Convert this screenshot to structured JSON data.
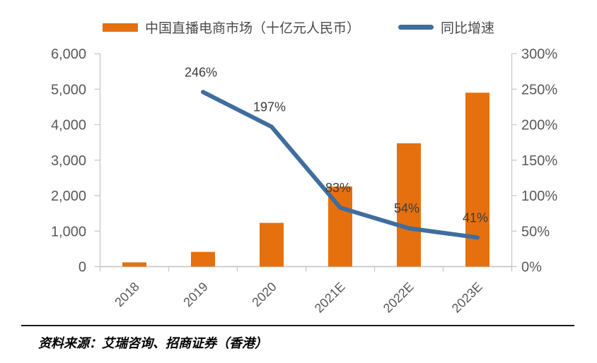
{
  "legend": {
    "bar_label": "中国直播电商市场（十亿元人民币）",
    "line_label": "同比增速"
  },
  "source": {
    "text": "资料来源：艾瑞咨询、招商证券（香港）"
  },
  "chart_data": {
    "type": "combo",
    "categories": [
      "2018",
      "2019",
      "2020",
      "2021E",
      "2022E",
      "2023E"
    ],
    "series": [
      {
        "name": "中国直播电商市场（十亿元人民币）",
        "type": "bar",
        "axis": "left",
        "values": [
          120,
          415,
          1232,
          2255,
          3475,
          4900
        ],
        "color": "#E6700D"
      },
      {
        "name": "同比增速",
        "type": "line",
        "axis": "right",
        "values": [
          null,
          246,
          197,
          83,
          54,
          41
        ],
        "labels": [
          null,
          "246%",
          "197%",
          "83%",
          "54%",
          "41%"
        ],
        "color": "#3F6D9E"
      }
    ],
    "left_axis": {
      "min": 0,
      "max": 6000,
      "ticks": [
        "0",
        "1,000",
        "2,000",
        "3,000",
        "4,000",
        "5,000",
        "6,000"
      ]
    },
    "right_axis": {
      "min": 0,
      "max": 300,
      "ticks": [
        "0%",
        "50%",
        "100%",
        "150%",
        "200%",
        "250%",
        "300%"
      ]
    },
    "grid": false,
    "legend_position": "top",
    "axis_color": "#C8C8C8",
    "axis_label_color": "#595959",
    "data_label_color": "#3C3C3C"
  }
}
